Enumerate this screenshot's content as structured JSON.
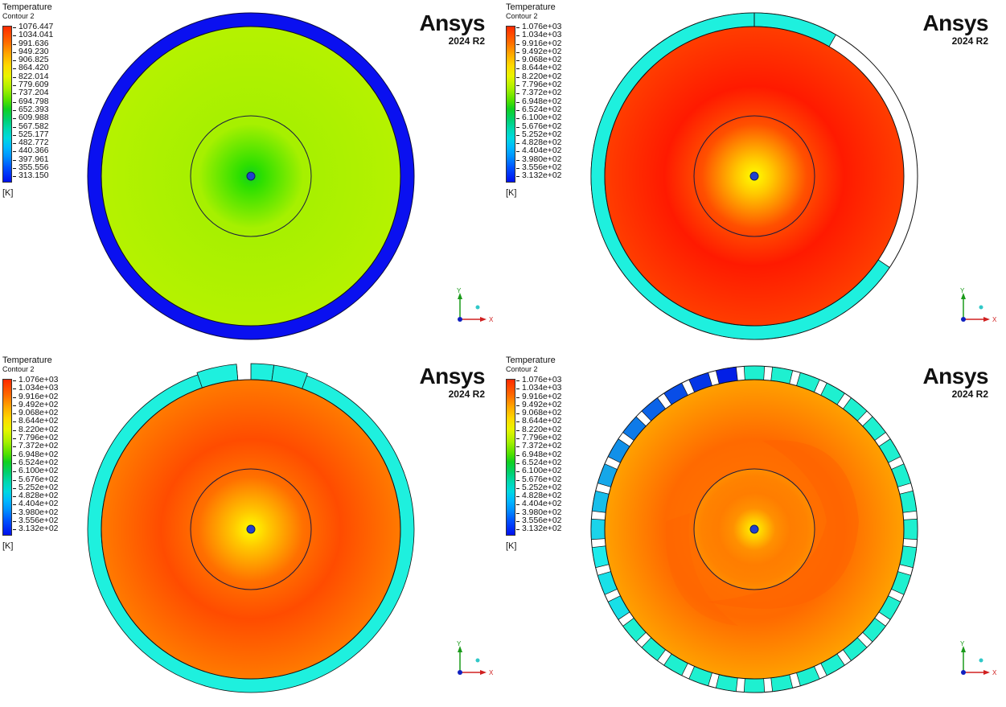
{
  "domain_note": "Four Ansys Fluent temperature contour plots of a circular cross-section",
  "brand": {
    "name": "Ansys",
    "version": "2024 R2"
  },
  "panels": [
    {
      "id": "top-left",
      "legend": {
        "title": "Temperature",
        "subtitle": "Contour 2",
        "unit": "[K]",
        "labels": [
          "1076.447",
          "1034.041",
          "991.636",
          "949.230",
          "906.825",
          "864.420",
          "822.014",
          "779.609",
          "737.204",
          "694.798",
          "652.393",
          "609.988",
          "567.582",
          "525.177",
          "482.772",
          "440.366",
          "397.961",
          "355.556",
          "313.150"
        ]
      },
      "outer_ring": {
        "type": "solid",
        "color": "#0a10f0"
      },
      "disk": {
        "center_color": "#2ee000",
        "mid_color": "#a6f000",
        "edge_color": "#b5f200"
      },
      "axes": {
        "x": "X",
        "y": "Y"
      }
    },
    {
      "id": "top-right",
      "legend": {
        "title": "Temperature",
        "subtitle": "Contour 2",
        "unit": "[K]",
        "labels": [
          "1.076e+03",
          "1.034e+03",
          "9.916e+02",
          "9.492e+02",
          "9.068e+02",
          "8.644e+02",
          "8.220e+02",
          "7.796e+02",
          "7.372e+02",
          "6.948e+02",
          "6.524e+02",
          "6.100e+02",
          "5.676e+02",
          "5.252e+02",
          "4.828e+02",
          "4.404e+02",
          "3.980e+02",
          "3.556e+02",
          "3.132e+02"
        ]
      },
      "outer_ring": {
        "type": "partial",
        "color": "#1ef0de",
        "gap_start_deg": 30,
        "gap_end_deg": 124
      },
      "disk": {
        "center_color": "#ffff00",
        "mid_color": "#ff1a00",
        "edge_color": "#ff3d00"
      },
      "axes": {
        "x": "X",
        "y": "Y"
      }
    },
    {
      "id": "bottom-left",
      "legend": {
        "title": "Temperature",
        "subtitle": "Contour 2",
        "unit": "[K]",
        "labels": [
          "1.076e+03",
          "1.034e+03",
          "9.916e+02",
          "9.492e+02",
          "9.068e+02",
          "8.644e+02",
          "8.220e+02",
          "7.796e+02",
          "7.372e+02",
          "6.948e+02",
          "6.524e+02",
          "6.100e+02",
          "5.676e+02",
          "5.252e+02",
          "4.828e+02",
          "4.404e+02",
          "3.980e+02",
          "3.556e+02",
          "3.132e+02"
        ]
      },
      "outer_ring": {
        "type": "gap-top",
        "color": "#1ef0de",
        "gap_start_deg": -3,
        "gap_end_deg": 0
      },
      "disk": {
        "center_color": "#ffff00",
        "mid_color": "#ff4c00",
        "edge_color": "#ff7a00"
      },
      "axes": {
        "x": "X",
        "y": "Y"
      }
    },
    {
      "id": "bottom-right",
      "legend": {
        "title": "Temperature",
        "subtitle": "Contour 2",
        "unit": "[K]",
        "labels": [
          "1.076e+03",
          "1.034e+03",
          "9.916e+02",
          "9.492e+02",
          "9.068e+02",
          "8.644e+02",
          "8.220e+02",
          "7.796e+02",
          "7.372e+02",
          "6.948e+02",
          "6.524e+02",
          "6.100e+02",
          "5.676e+02",
          "5.252e+02",
          "4.828e+02",
          "4.404e+02",
          "3.980e+02",
          "3.556e+02",
          "3.132e+02"
        ]
      },
      "outer_ring": {
        "type": "segmented",
        "segments": 36,
        "color": "#1ef0d0"
      },
      "disk": {
        "center_color": "#ffff00",
        "mid_color": "#ff6a00",
        "edge_color": "#ffa000"
      },
      "axes": {
        "x": "X",
        "y": "Y"
      }
    }
  ]
}
